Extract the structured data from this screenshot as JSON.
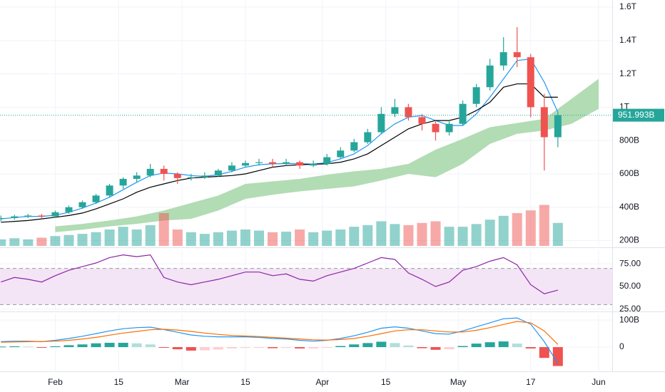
{
  "chart_data": [
    {
      "type": "candlestick",
      "x": [
        -12,
        -9,
        -6,
        -3,
        0,
        3,
        6,
        9,
        12,
        15,
        18,
        21,
        24,
        27,
        30,
        33,
        36,
        39,
        42,
        45,
        48,
        51,
        54,
        57,
        60,
        63,
        66,
        69,
        72,
        75,
        78,
        81,
        84,
        87,
        90,
        93,
        96,
        99,
        102,
        105,
        108,
        111
      ],
      "candles": [
        [
          330,
          350,
          315,
          335
        ],
        [
          335,
          355,
          325,
          345
        ],
        [
          345,
          360,
          335,
          350
        ],
        [
          350,
          360,
          330,
          345
        ],
        [
          345,
          380,
          340,
          370
        ],
        [
          370,
          410,
          360,
          400
        ],
        [
          400,
          440,
          390,
          430
        ],
        [
          430,
          480,
          420,
          470
        ],
        [
          470,
          540,
          460,
          530
        ],
        [
          530,
          580,
          510,
          570
        ],
        [
          570,
          610,
          550,
          590
        ],
        [
          590,
          660,
          580,
          630
        ],
        [
          630,
          650,
          560,
          600
        ],
        [
          600,
          610,
          540,
          575
        ],
        [
          575,
          600,
          560,
          580
        ],
        [
          580,
          610,
          570,
          590
        ],
        [
          590,
          630,
          580,
          620
        ],
        [
          620,
          670,
          610,
          650
        ],
        [
          650,
          680,
          640,
          665
        ],
        [
          665,
          690,
          650,
          670
        ],
        [
          670,
          690,
          640,
          660
        ],
        [
          660,
          690,
          650,
          670
        ],
        [
          670,
          680,
          630,
          650
        ],
        [
          650,
          680,
          640,
          660
        ],
        [
          660,
          720,
          650,
          700
        ],
        [
          700,
          760,
          690,
          740
        ],
        [
          740,
          810,
          730,
          790
        ],
        [
          790,
          870,
          780,
          850
        ],
        [
          850,
          1000,
          840,
          960
        ],
        [
          960,
          1050,
          940,
          1000
        ],
        [
          1000,
          1020,
          920,
          940
        ],
        [
          940,
          960,
          860,
          900
        ],
        [
          900,
          920,
          800,
          850
        ],
        [
          850,
          920,
          830,
          900
        ],
        [
          900,
          1040,
          890,
          1020
        ],
        [
          1020,
          1140,
          1000,
          1120
        ],
        [
          1120,
          1290,
          1100,
          1250
        ],
        [
          1250,
          1420,
          1220,
          1330
        ],
        [
          1330,
          1480,
          1240,
          1300
        ],
        [
          1300,
          1320,
          940,
          1000
        ],
        [
          1000,
          1080,
          620,
          820
        ],
        [
          820,
          970,
          760,
          952
        ]
      ],
      "up_color": "#26a69a",
      "down_color": "#ef5350",
      "lines": [
        {
          "color": "#2196f3",
          "values": [
            330,
            338,
            345,
            345,
            352,
            370,
            395,
            425,
            460,
            505,
            550,
            590,
            605,
            600,
            590,
            585,
            595,
            615,
            640,
            655,
            660,
            662,
            662,
            658,
            668,
            690,
            720,
            770,
            840,
            900,
            940,
            950,
            920,
            890,
            890,
            960,
            1060,
            1170,
            1280,
            1290,
            1150,
            970
          ]
        },
        {
          "color": "#000000",
          "values": [
            310,
            315,
            320,
            330,
            340,
            350,
            365,
            390,
            420,
            450,
            490,
            520,
            540,
            560,
            575,
            580,
            585,
            590,
            600,
            620,
            640,
            650,
            655,
            658,
            660,
            670,
            690,
            720,
            770,
            820,
            870,
            900,
            920,
            920,
            940,
            980,
            1030,
            1120,
            1140,
            1140,
            1060,
            1060
          ]
        }
      ],
      "cloud": {
        "color": "#a5d6a7",
        "x": [
          0,
          6,
          12,
          18,
          24,
          30,
          36,
          42,
          48,
          54,
          60,
          66,
          72,
          78,
          84,
          90,
          96,
          102,
          108,
          114,
          120
        ],
        "upper": [
          285,
          300,
          320,
          345,
          380,
          425,
          470,
          540,
          555,
          570,
          595,
          615,
          630,
          660,
          745,
          810,
          880,
          905,
          930,
          1050,
          1170
        ],
        "lower": [
          250,
          265,
          285,
          300,
          320,
          330,
          380,
          450,
          475,
          495,
          510,
          525,
          560,
          600,
          580,
          660,
          780,
          840,
          860,
          900,
          990
        ]
      },
      "volume": {
        "ylim": [
          0,
          450
        ],
        "values": [
          12,
          14,
          12,
          15,
          18,
          20,
          22,
          25,
          30,
          35,
          30,
          38,
          60,
          30,
          25,
          22,
          25,
          28,
          30,
          28,
          25,
          26,
          30,
          25,
          28,
          30,
          35,
          38,
          45,
          40,
          38,
          42,
          45,
          35,
          35,
          40,
          48,
          55,
          60,
          65,
          75,
          42
        ]
      },
      "last_price": {
        "value": 951.993,
        "label": "951.993B"
      },
      "ylim": [
        168,
        1643
      ],
      "yticks": [
        {
          "value": 200,
          "label": "200B"
        },
        {
          "value": 400,
          "label": "400B"
        },
        {
          "value": 600,
          "label": "600B"
        },
        {
          "value": 800,
          "label": "800B"
        },
        {
          "value": 1000,
          "label": "1T"
        },
        {
          "value": 1200,
          "label": "1.2T"
        },
        {
          "value": 1400,
          "label": "1.4T"
        },
        {
          "value": 1600,
          "label": "1.6T"
        }
      ]
    },
    {
      "type": "line",
      "color": "#8e24aa",
      "values": [
        55,
        60,
        58,
        55,
        62,
        68,
        72,
        76,
        82,
        85,
        83,
        85,
        60,
        55,
        52,
        55,
        58,
        62,
        66,
        66,
        62,
        64,
        58,
        56,
        62,
        66,
        70,
        76,
        82,
        80,
        65,
        58,
        50,
        55,
        68,
        72,
        78,
        82,
        74,
        52,
        42,
        46
      ],
      "band": [
        30,
        70
      ],
      "band_color": "#f3e5f5",
      "ylim": [
        24,
        91
      ],
      "yticks": [
        {
          "value": 25,
          "label": "25.00"
        },
        {
          "value": 50,
          "label": "50.00"
        },
        {
          "value": 75,
          "label": "75.00"
        }
      ]
    },
    {
      "type": "macd",
      "macd": {
        "color": "#2196f3",
        "values": [
          20,
          22,
          22,
          20,
          25,
          32,
          40,
          50,
          60,
          68,
          72,
          74,
          65,
          55,
          45,
          40,
          38,
          38,
          38,
          36,
          32,
          30,
          25,
          22,
          25,
          32,
          42,
          55,
          70,
          75,
          70,
          60,
          50,
          48,
          60,
          75,
          90,
          105,
          108,
          85,
          20,
          -60
        ]
      },
      "signal": {
        "color": "#ff6d00",
        "values": [
          18,
          19,
          20,
          21,
          22,
          25,
          30,
          36,
          44,
          52,
          58,
          64,
          66,
          63,
          58,
          52,
          47,
          43,
          41,
          39,
          36,
          33,
          30,
          27,
          26,
          28,
          32,
          40,
          50,
          60,
          64,
          64,
          60,
          56,
          56,
          62,
          72,
          84,
          95,
          90,
          60,
          10
        ]
      },
      "histogram": {
        "colors": [
          "#26a69a",
          "#b2dfdb",
          "#ffcdd2",
          "#ef5350"
        ],
        "values": [
          2,
          3,
          2,
          -1,
          3,
          7,
          10,
          14,
          16,
          16,
          14,
          10,
          -1,
          -8,
          -13,
          -12,
          -9,
          -5,
          -3,
          -3,
          -4,
          -3,
          -5,
          -5,
          -1,
          4,
          10,
          15,
          20,
          15,
          6,
          -4,
          -10,
          -8,
          4,
          13,
          18,
          21,
          13,
          -5,
          -40,
          -70
        ]
      },
      "ylim": [
        -87,
        124
      ],
      "yticks": [
        0,
        {
          "value": 100,
          "label": "100B"
        }
      ],
      "xlim": [
        -12.2,
        123
      ],
      "xticks": [
        {
          "value": 0,
          "label": "Feb"
        },
        {
          "value": 14,
          "label": "15"
        },
        {
          "value": 28,
          "label": "Mar"
        },
        {
          "value": 42,
          "label": "15"
        },
        {
          "value": 59,
          "label": "Apr"
        },
        {
          "value": 73,
          "label": "15"
        },
        {
          "value": 89,
          "label": "May"
        },
        {
          "value": 105,
          "label": "17"
        },
        {
          "value": 120,
          "label": "Jun"
        }
      ]
    }
  ]
}
